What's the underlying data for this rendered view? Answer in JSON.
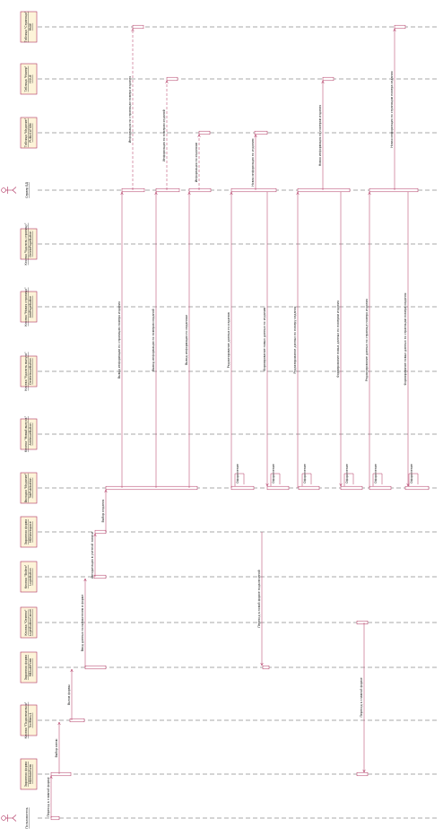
{
  "lifelines": [
    {
      "id": "user",
      "kind": "actor",
      "line1": "Пользователь",
      "line2": ""
    },
    {
      "id": "mainform",
      "kind": "box",
      "line1": "Экранная форма",
      "line2": "MDIMainForm"
    },
    {
      "id": "menu",
      "kind": "box",
      "line1": "Кнопка \"Подключиться\"",
      "line2": "ToolMenu1"
    },
    {
      "id": "loginform",
      "kind": "box",
      "line1": "Экранная форма",
      "line2": "MEAuthForm"
    },
    {
      "id": "cancelbtn",
      "kind": "box",
      "line1": "Кнопка \"Отмена\"",
      "line2": "LoginButtonCancel"
    },
    {
      "id": "loginbtn",
      "kind": "box",
      "line1": "Кнопка \"Войти\"",
      "line2": "LoginButton"
    },
    {
      "id": "workform",
      "kind": "box",
      "line1": "Экранная форма",
      "line2": "MDIWorkspace"
    },
    {
      "id": "tabs",
      "kind": "box",
      "line1": "Вкладка \"Издание\"",
      "line2": "TabPublication"
    },
    {
      "id": "newbtn",
      "kind": "box",
      "line1": "Кнопка \"Новый выпуск\"",
      "line2": "AddIssueButton"
    },
    {
      "id": "editbtn",
      "kind": "box",
      "line1": "Кнопка \"Удалить выпуск\"",
      "line2": "DeleteIssueButton"
    },
    {
      "id": "newpage",
      "kind": "box",
      "line1": "Кнопка \"Новая страница\"",
      "line2": "AddPageButton"
    },
    {
      "id": "delpage",
      "kind": "box",
      "line1": "Кнопка \"Удалить страницу\"",
      "line2": "DeletePageButton"
    },
    {
      "id": "db",
      "kind": "actor",
      "line1": "Сервер БД",
      "line2": ""
    },
    {
      "id": "tblIssue",
      "kind": "box",
      "line1": "Таблица \"Издание\"",
      "line2": "PUBLICATION"
    },
    {
      "id": "tblNum",
      "kind": "box",
      "line1": "Таблица \"Номер\"",
      "line2": "ISSUE"
    },
    {
      "id": "tblPage",
      "kind": "box",
      "line1": "Таблица \"Страница\"",
      "line2": "PAGE"
    }
  ],
  "messages": [
    "Переход к главной форме",
    "Выбор меню",
    "Вызов формы",
    "Ввод данных пользователем в форме",
    "Авторизация в учетной записи",
    "Выбор издания",
    "Переход к новой форме подключений",
    "Переход к главной форме",
    "Вывод информации по страницам номера издания",
    "Вывод информации по номерам изданий",
    "Вывод информации по изданиям",
    "Информация по страницам номера издания",
    "Информация по номерам изданий",
    "Информация по изданиям",
    "Редактирование данных по изданию",
    "Новая информация по изданию",
    "Формирование новых данных по изданию",
    "Редактирование данных по номеру издания",
    "Новая информация по номерам издания",
    "Формирование новых данных по номерам издания",
    "Редактирование данных по странице номера издания",
    "Новая информация по страницам номера издания",
    "Формирование новых данных по страницам номера издания",
    "Оформление"
  ]
}
